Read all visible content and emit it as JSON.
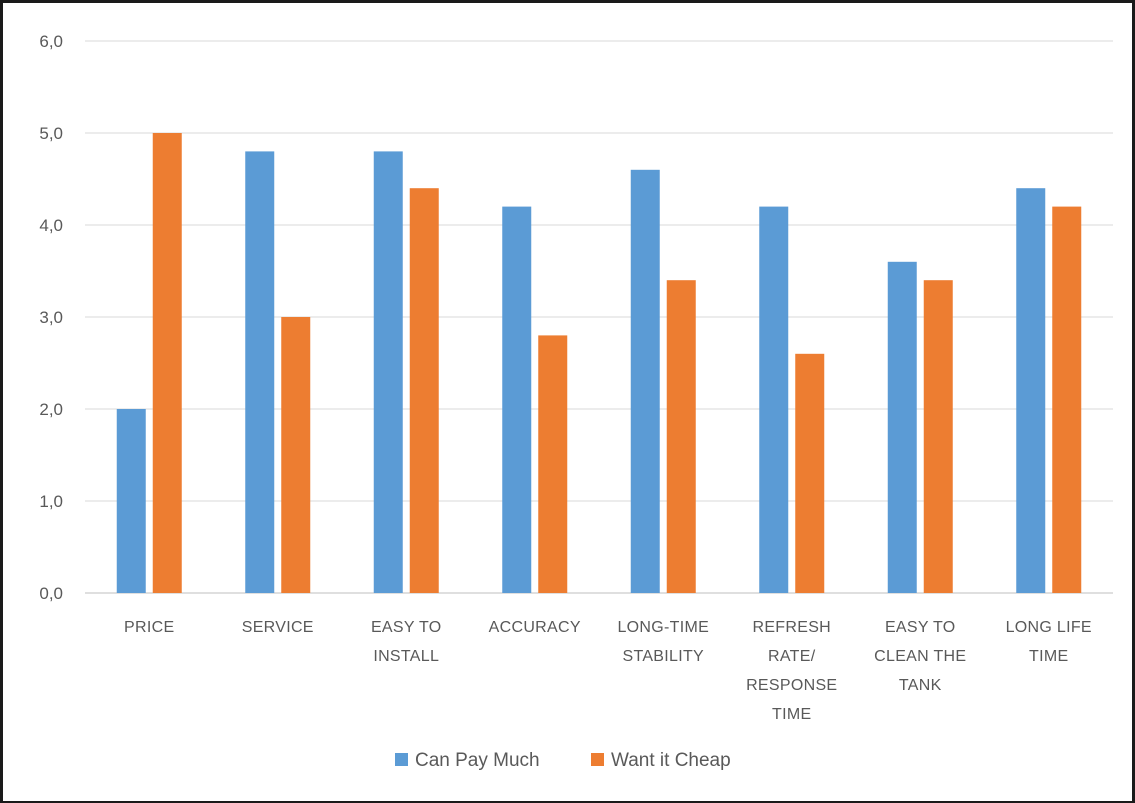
{
  "chart_data": {
    "type": "bar",
    "categories": [
      [
        "PRICE"
      ],
      [
        "SERVICE"
      ],
      [
        "EASY TO",
        "INSTALL"
      ],
      [
        "ACCURACY"
      ],
      [
        "LONG-TIME",
        "STABILITY"
      ],
      [
        "REFRESH",
        "RATE/",
        "RESPONSE",
        "TIME"
      ],
      [
        "EASY TO",
        "CLEAN THE",
        "TANK"
      ],
      [
        "LONG LIFE",
        "TIME"
      ]
    ],
    "series": [
      {
        "name": "Can Pay Much",
        "color": "#5B9BD5",
        "values": [
          2.0,
          4.8,
          4.8,
          4.2,
          4.6,
          4.2,
          3.6,
          4.4
        ]
      },
      {
        "name": "Want it Cheap",
        "color": "#ED7D31",
        "values": [
          5.0,
          3.0,
          4.4,
          2.8,
          3.4,
          2.6,
          3.4,
          4.2
        ]
      }
    ],
    "yticks": [
      "0,0",
      "1,0",
      "2,0",
      "3,0",
      "4,0",
      "5,0",
      "6,0"
    ],
    "ylim": [
      0,
      6
    ],
    "grid": true,
    "legend": "bottom"
  }
}
